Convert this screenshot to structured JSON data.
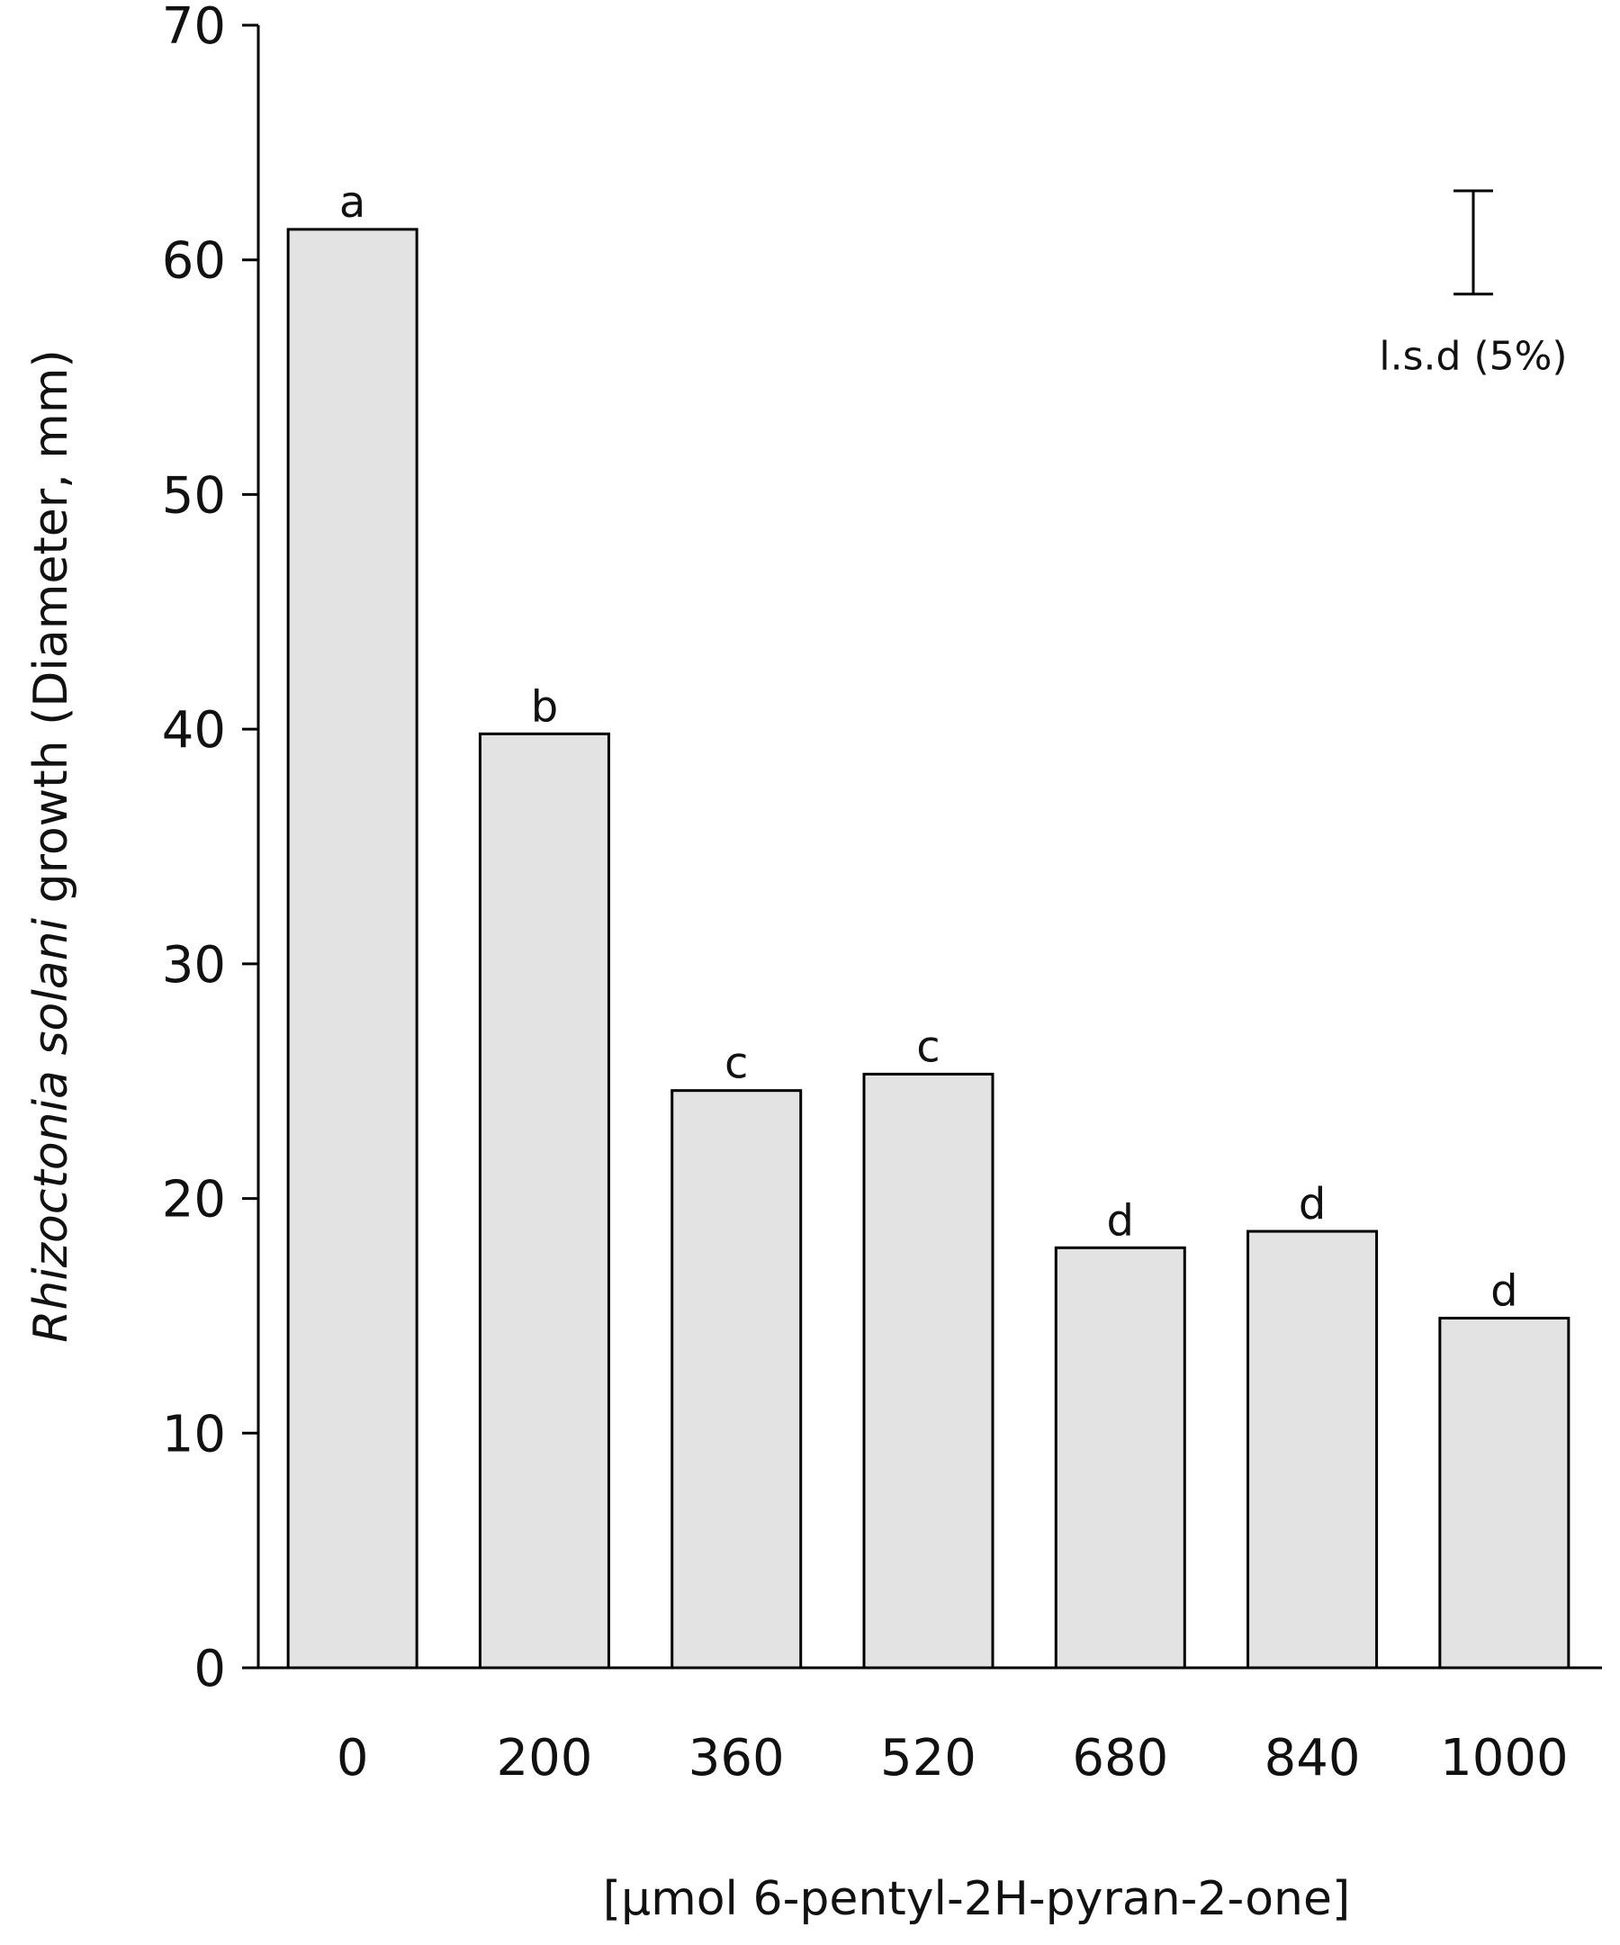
{
  "chart_data": {
    "type": "bar",
    "categories": [
      "0",
      "200",
      "360",
      "520",
      "680",
      "840",
      "1000"
    ],
    "values": [
      61.3,
      39.8,
      24.6,
      25.3,
      17.9,
      18.6,
      14.9
    ],
    "significance_letters": [
      "a",
      "b",
      "c",
      "c",
      "d",
      "d",
      "d"
    ],
    "title": "",
    "xlabel": "[µmol 6-pentyl-2H-pyran-2-one]",
    "ylabel_italic": "Rhizoctonia solani",
    "ylabel_rest": " growth (Diameter, mm)",
    "ylim": [
      0,
      70
    ],
    "yticks": [
      "0",
      "10",
      "20",
      "30",
      "40",
      "50",
      "60",
      "70"
    ],
    "lsd": {
      "label": "l.s.d (5%)",
      "value": 4.4
    },
    "bar_color": "#e3e3e3",
    "grid": false
  }
}
